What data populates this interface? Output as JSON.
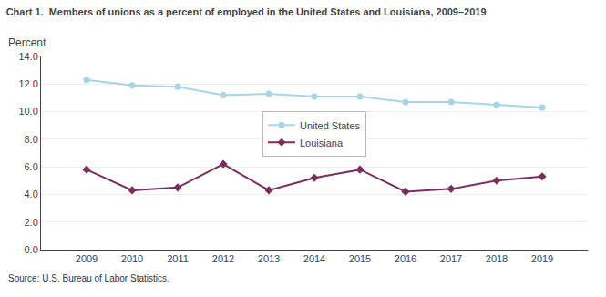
{
  "chart_data": {
    "type": "line",
    "title": "Chart 1.  Members of unions as a percent of employed in the United States and Louisiana, 2009–2019",
    "ylabel": "Percent",
    "annotations": [
      "Source: U.S. Bureau of Labor Statistics."
    ],
    "x": [
      2009,
      2010,
      2011,
      2012,
      2013,
      2014,
      2015,
      2016,
      2017,
      2018,
      2019
    ],
    "series": [
      {
        "name": "United States",
        "color": "#a8d4e6",
        "marker": "circle",
        "values": [
          12.3,
          11.9,
          11.8,
          11.2,
          11.3,
          11.1,
          11.1,
          10.7,
          10.7,
          10.5,
          10.3
        ]
      },
      {
        "name": "Louisiana",
        "color": "#7b2d5e",
        "marker": "diamond",
        "values": [
          5.8,
          4.3,
          4.5,
          6.2,
          4.3,
          5.2,
          5.8,
          4.2,
          4.4,
          5.0,
          5.3
        ]
      }
    ],
    "xlim": [
      2008,
      2020
    ],
    "xticks": [
      2009,
      2010,
      2011,
      2012,
      2013,
      2014,
      2015,
      2016,
      2017,
      2018,
      2019
    ],
    "ylim": [
      0,
      14.0
    ],
    "yticks": [
      {
        "value": 0.0,
        "label": "0.0"
      },
      {
        "value": 2.0,
        "label": "2.0"
      },
      {
        "value": 4.0,
        "label": "4.0"
      },
      {
        "value": 6.0,
        "label": "6.0"
      },
      {
        "value": 8.0,
        "label": "8.0"
      },
      {
        "value": 10.0,
        "label": "10.0"
      },
      {
        "value": 12.0,
        "label": "12.0"
      },
      {
        "value": 14.0,
        "label": "14.0"
      }
    ],
    "grid": true,
    "legend": "center"
  }
}
